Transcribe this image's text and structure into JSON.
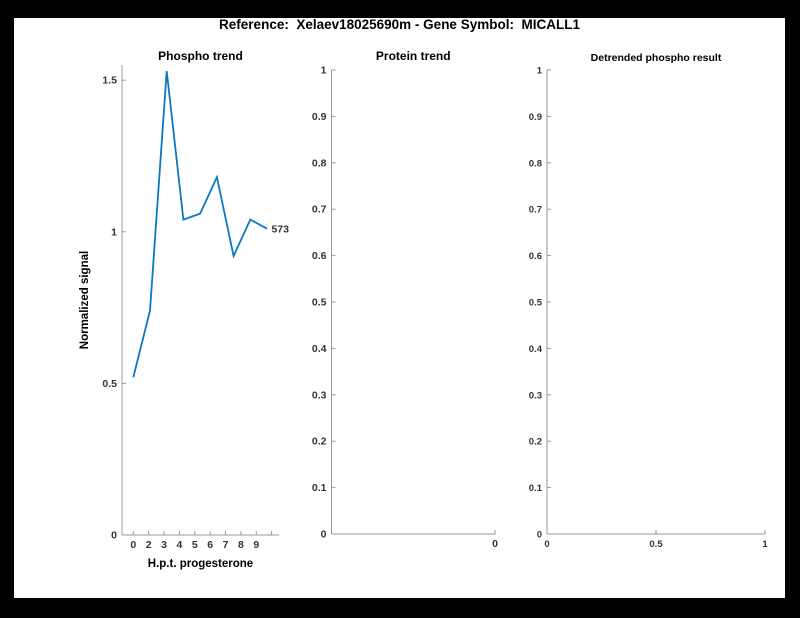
{
  "figure": {
    "title": "Reference:  Xelaev18025690m - Gene Symbol:  MICALL1",
    "background_color": "#ffffff",
    "frame_color": "#000000",
    "axis_color": "#999999",
    "tick_label_color": "#333333",
    "title_color": "#000000"
  },
  "chart_data": [
    {
      "type": "line",
      "title": "Phospho trend",
      "xlabel": "H.p.t. progesterone",
      "ylabel": "Normalized signal",
      "categories": [
        0,
        2,
        3,
        4,
        5,
        6,
        7,
        8,
        9
      ],
      "values": [
        0.52,
        0.74,
        1.53,
        1.04,
        1.06,
        1.18,
        0.92,
        1.04,
        1.01
      ],
      "end_label": "573",
      "line_color": "#0d77c2",
      "ylim": [
        0,
        1.55
      ],
      "yticks": [
        0,
        0.5,
        1,
        1.5
      ],
      "ytick_labels": [
        "0",
        "0.5",
        "1",
        "1.5"
      ],
      "x_tick_labels": [
        "0",
        "2",
        "3",
        "4",
        "5",
        "6",
        "7",
        "8",
        "9",
        ""
      ],
      "grid": false,
      "legend": null
    },
    {
      "type": "line",
      "title": "Protein trend",
      "xlabel": "",
      "ylabel": "",
      "categories": [],
      "values": [],
      "line_color": "#0d77c2",
      "ylim": [
        0,
        1
      ],
      "yticks": [
        0,
        0.1,
        0.2,
        0.3,
        0.4,
        0.5,
        0.6,
        0.7,
        0.8,
        0.9,
        1
      ],
      "ytick_labels": [
        "0",
        "0.1",
        "0.2",
        "0.3",
        "0.4",
        "0.5",
        "0.6",
        "0.7",
        "0.8",
        "0.9",
        "1"
      ],
      "x_tick_labels": [
        "0"
      ],
      "grid": false,
      "legend": null
    },
    {
      "type": "line",
      "title": "Detrended phospho result",
      "xlabel": "",
      "ylabel": "",
      "categories": [],
      "values": [],
      "line_color": "#0d77c2",
      "ylim": [
        0,
        1
      ],
      "yticks": [
        0,
        0.1,
        0.2,
        0.3,
        0.4,
        0.5,
        0.6,
        0.7,
        0.8,
        0.9,
        1
      ],
      "ytick_labels": [
        "0",
        "0.1",
        "0.2",
        "0.3",
        "0.4",
        "0.5",
        "0.6",
        "0.7",
        "0.8",
        "0.9",
        "1"
      ],
      "x_tick_labels": [
        "0",
        "0.5",
        "1"
      ],
      "grid": false,
      "legend": null
    }
  ]
}
